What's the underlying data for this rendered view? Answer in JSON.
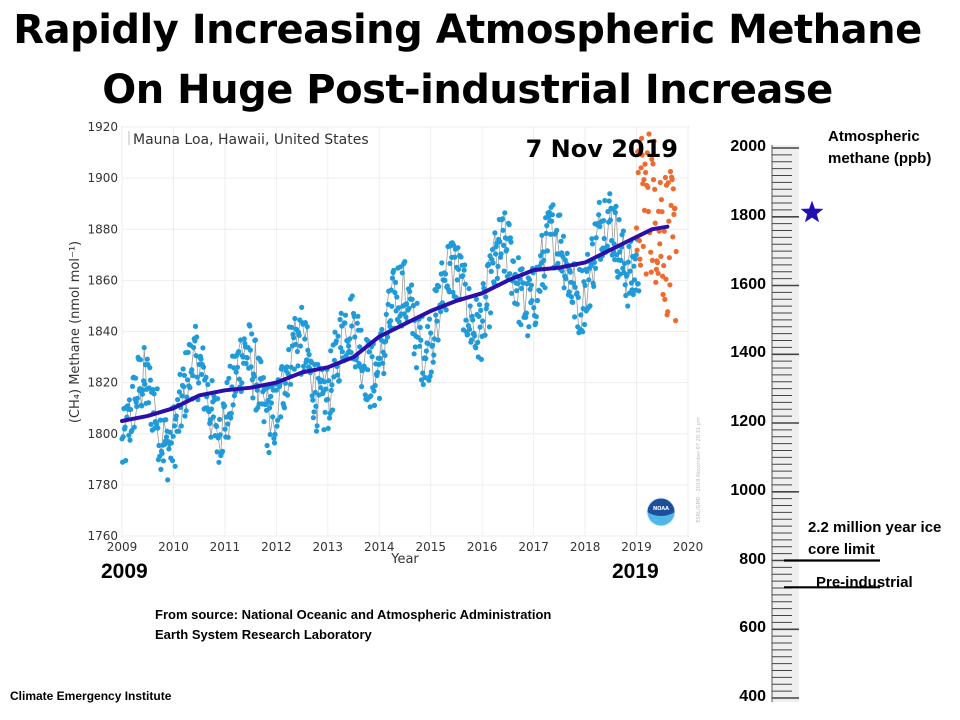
{
  "title_line1": "Rapidly Increasing Atmospheric Methane",
  "title_line2": "On Huge Post-industrial Increase",
  "range_start_label": "2009",
  "range_end_label": "2019",
  "source_line1": "From source: National Oceanic and Atmospheric Administration",
  "source_line2": "Earth System Research Laboratory",
  "footer": "Climate Emergency Institute",
  "colors": {
    "measured": "#1f9bd9",
    "preliminary": "#ef6a2e",
    "trend": "#2b0fa8",
    "star": "#2010b0"
  },
  "chart_data": [
    {
      "type": "scatter",
      "title": "",
      "location_label": "Mauna Loa, Hawaii, United States",
      "date_label": "7 Nov 2019",
      "xlabel": "Year",
      "ylabel": "(CH₄) Methane (nmol mol⁻¹)",
      "xlim": [
        2009,
        2020
      ],
      "ylim": [
        1760,
        1920
      ],
      "xticks": [
        2009,
        2010,
        2011,
        2012,
        2013,
        2014,
        2015,
        2016,
        2017,
        2018,
        2019,
        2020
      ],
      "yticks": [
        1760,
        1780,
        1800,
        1820,
        1840,
        1860,
        1880,
        1900,
        1920
      ],
      "grid": true,
      "watermark": "ESRL/GMD - 2019-November-07 20:31 pm",
      "logo": "NOAA",
      "series": [
        {
          "kind": "points",
          "trend": [
            [
              2009.0,
              1805
            ],
            [
              2009.5,
              1807
            ],
            [
              2010.0,
              1810
            ],
            [
              2010.5,
              1815
            ],
            [
              2011.0,
              1817
            ],
            [
              2011.5,
              1818
            ],
            [
              2012.0,
              1820
            ],
            [
              2012.5,
              1824
            ],
            [
              2013.0,
              1826
            ],
            [
              2013.5,
              1830
            ],
            [
              2014.0,
              1838
            ],
            [
              2014.5,
              1843
            ],
            [
              2015.0,
              1848
            ],
            [
              2015.5,
              1852
            ],
            [
              2016.0,
              1855
            ],
            [
              2016.5,
              1860
            ],
            [
              2017.0,
              1864
            ],
            [
              2017.5,
              1865
            ],
            [
              2018.0,
              1867
            ],
            [
              2018.5,
              1872
            ],
            [
              2019.0,
              1877
            ],
            [
              2019.5,
              1881
            ],
            [
              2019.7,
              1881
            ]
          ]
        },
        {
          "kind": "points",
          "trend": [
            [
              2019.0,
              1883
            ],
            [
              2019.2,
              1884
            ],
            [
              2019.4,
              1882
            ],
            [
              2019.6,
              1880
            ],
            [
              2019.75,
              1879
            ]
          ]
        },
        {
          "kind": "line",
          "x": [
            2009.0,
            2009.5,
            2010.0,
            2010.5,
            2011.0,
            2011.5,
            2012.0,
            2012.5,
            2013.0,
            2013.5,
            2014.0,
            2014.5,
            2015.0,
            2015.5,
            2016.0,
            2016.5,
            2017.0,
            2017.5,
            2018.0,
            2018.5,
            2019.0,
            2019.3,
            2019.6
          ],
          "y": [
            1805,
            1807,
            1810,
            1815,
            1817,
            1818,
            1820,
            1824,
            1826,
            1830,
            1838,
            1843,
            1848,
            1852,
            1855,
            1860,
            1864,
            1865,
            1867,
            1872,
            1877,
            1880,
            1881
          ]
        }
      ]
    },
    {
      "type": "scale",
      "label": "Atmospheric methane (ppb)",
      "ticks": [
        2000,
        1800,
        1600,
        1400,
        1200,
        1000,
        800,
        600,
        400
      ],
      "ylim": [
        400,
        2000
      ],
      "current_value": 1812,
      "markers": [
        {
          "label": "2.2 million year ice core limit",
          "value": 800
        },
        {
          "label": "Pre-industrial",
          "value": 722
        }
      ]
    }
  ]
}
